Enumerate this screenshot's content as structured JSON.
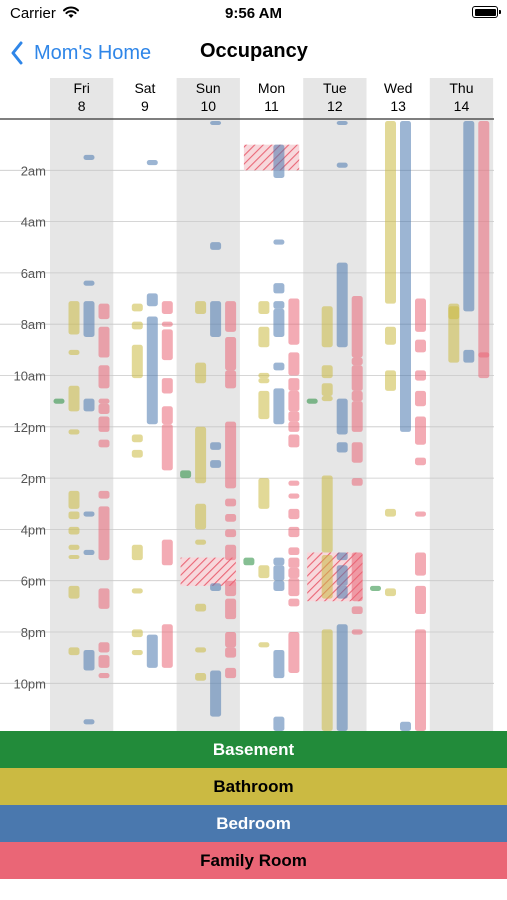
{
  "status_bar": {
    "carrier": "Carrier",
    "time": "9:56 AM"
  },
  "nav": {
    "back_label": "Mom's Home",
    "title": "Occupancy"
  },
  "days": [
    {
      "day": "Fri",
      "date": "8"
    },
    {
      "day": "Sat",
      "date": "9"
    },
    {
      "day": "Sun",
      "date": "10"
    },
    {
      "day": "Mon",
      "date": "11"
    },
    {
      "day": "Tue",
      "date": "12"
    },
    {
      "day": "Wed",
      "date": "13"
    },
    {
      "day": "Thu",
      "date": "14"
    }
  ],
  "hour_labels": [
    {
      "hour": 2,
      "label": "2am"
    },
    {
      "hour": 4,
      "label": "4am"
    },
    {
      "hour": 6,
      "label": "6am"
    },
    {
      "hour": 8,
      "label": "8am"
    },
    {
      "hour": 10,
      "label": "10am"
    },
    {
      "hour": 12,
      "label": "12pm"
    },
    {
      "hour": 14,
      "label": "2pm"
    },
    {
      "hour": 16,
      "label": "4pm"
    },
    {
      "hour": 18,
      "label": "6pm"
    },
    {
      "hour": 20,
      "label": "8pm"
    },
    {
      "hour": 22,
      "label": "10pm"
    }
  ],
  "rooms": [
    {
      "name": "Basement",
      "color": "#228b3a",
      "text_color": "#ffffff"
    },
    {
      "name": "Bathroom",
      "color": "#cbba42",
      "text_color": "#000000"
    },
    {
      "name": "Bedroom",
      "color": "#4a78ae",
      "text_color": "#ffffff"
    },
    {
      "name": "Family Room",
      "color": "#ea6676",
      "text_color": "#000000"
    }
  ],
  "colors": {
    "shaded_column": "#e6e6e6",
    "grid_line": "#c8c8c8",
    "header_line": "#333333"
  },
  "occupancy": [
    {
      "day": 0,
      "room": "Basement",
      "blocks": [
        [
          10.9,
          11.1
        ]
      ]
    },
    {
      "day": 0,
      "room": "Bathroom",
      "blocks": [
        [
          7.1,
          8.4
        ],
        [
          9.0,
          9.2
        ],
        [
          10.4,
          11.4
        ],
        [
          12.1,
          12.3
        ],
        [
          14.5,
          15.2
        ],
        [
          15.3,
          15.6
        ],
        [
          15.9,
          16.2
        ],
        [
          16.6,
          16.8
        ],
        [
          17.0,
          17.1
        ],
        [
          18.2,
          18.7
        ],
        [
          20.6,
          20.9
        ]
      ]
    },
    {
      "day": 0,
      "room": "Bedroom",
      "blocks": [
        [
          1.4,
          1.6
        ],
        [
          6.3,
          6.5
        ],
        [
          7.1,
          8.5
        ],
        [
          10.9,
          11.4
        ],
        [
          15.3,
          15.5
        ],
        [
          16.8,
          17.0
        ],
        [
          20.7,
          21.5
        ],
        [
          23.4,
          23.6
        ]
      ]
    },
    {
      "day": 0,
      "room": "Family Room",
      "blocks": [
        [
          7.2,
          7.8
        ],
        [
          8.1,
          9.3
        ],
        [
          9.6,
          10.5
        ],
        [
          10.9,
          11.1
        ],
        [
          11.1,
          11.5
        ],
        [
          11.6,
          12.2
        ],
        [
          12.5,
          12.8
        ],
        [
          14.5,
          14.8
        ],
        [
          15.1,
          17.2
        ],
        [
          18.3,
          19.1
        ],
        [
          20.4,
          20.8
        ],
        [
          20.9,
          21.4
        ],
        [
          21.6,
          21.8
        ]
      ]
    },
    {
      "day": 1,
      "room": "Bathroom",
      "blocks": [
        [
          7.2,
          7.5
        ],
        [
          7.9,
          8.2
        ],
        [
          8.8,
          10.1
        ],
        [
          12.3,
          12.6
        ],
        [
          12.9,
          13.2
        ],
        [
          16.6,
          17.2
        ],
        [
          18.3,
          18.5
        ],
        [
          19.9,
          20.2
        ],
        [
          20.7,
          20.9
        ]
      ]
    },
    {
      "day": 1,
      "room": "Bedroom",
      "blocks": [
        [
          1.6,
          1.8
        ],
        [
          6.8,
          7.3
        ],
        [
          7.7,
          11.9
        ],
        [
          20.1,
          21.4
        ]
      ]
    },
    {
      "day": 1,
      "room": "Family Room",
      "blocks": [
        [
          7.1,
          7.6
        ],
        [
          7.9,
          8.1
        ],
        [
          8.2,
          9.4
        ],
        [
          10.1,
          10.7
        ],
        [
          11.2,
          11.9
        ],
        [
          11.9,
          13.7
        ],
        [
          16.4,
          17.4
        ],
        [
          19.7,
          21.4
        ]
      ]
    },
    {
      "day": 2,
      "room": "Basement",
      "blocks": [
        [
          13.7,
          14.0
        ]
      ]
    },
    {
      "day": 2,
      "room": "Bathroom",
      "blocks": [
        [
          7.1,
          7.6
        ],
        [
          9.5,
          10.3
        ],
        [
          12.0,
          14.2
        ],
        [
          15.0,
          16.0
        ],
        [
          16.4,
          16.6
        ],
        [
          18.9,
          19.2
        ],
        [
          20.6,
          20.8
        ],
        [
          21.6,
          21.9
        ]
      ]
    },
    {
      "day": 2,
      "room": "Bedroom",
      "blocks": [
        [
          -0.2,
          0.2
        ],
        [
          4.8,
          5.1
        ],
        [
          7.1,
          8.5
        ],
        [
          12.6,
          12.9
        ],
        [
          13.3,
          13.6
        ],
        [
          18.1,
          18.4
        ],
        [
          21.5,
          23.3
        ]
      ]
    },
    {
      "day": 2,
      "room": "Family Room",
      "blocks": [
        [
          7.1,
          8.3
        ],
        [
          8.5,
          9.8
        ],
        [
          9.8,
          10.5
        ],
        [
          11.8,
          14.4
        ],
        [
          14.8,
          15.1
        ],
        [
          15.4,
          15.7
        ],
        [
          16.0,
          16.3
        ],
        [
          16.6,
          17.2
        ],
        [
          18.0,
          18.6
        ],
        [
          18.7,
          19.5
        ],
        [
          20.0,
          20.6
        ],
        [
          20.6,
          21.0
        ],
        [
          21.4,
          21.8
        ]
      ]
    },
    {
      "day": 3,
      "room": "Basement",
      "blocks": [
        [
          17.1,
          17.4
        ]
      ]
    },
    {
      "day": 3,
      "room": "Bathroom",
      "blocks": [
        [
          7.1,
          7.6
        ],
        [
          8.1,
          8.9
        ],
        [
          9.9,
          10.1
        ],
        [
          10.1,
          10.3
        ],
        [
          10.6,
          11.7
        ],
        [
          14.0,
          15.2
        ],
        [
          17.4,
          17.9
        ],
        [
          20.4,
          20.6
        ]
      ]
    },
    {
      "day": 3,
      "room": "Bedroom",
      "blocks": [
        [
          1.0,
          2.3
        ],
        [
          4.7,
          4.9
        ],
        [
          6.4,
          6.8
        ],
        [
          7.1,
          7.4
        ],
        [
          7.4,
          8.5
        ],
        [
          9.5,
          9.8
        ],
        [
          10.5,
          11.9
        ],
        [
          17.1,
          17.4
        ],
        [
          17.4,
          18.0
        ],
        [
          18.0,
          18.4
        ],
        [
          20.7,
          21.8
        ],
        [
          23.3,
          24.0
        ]
      ]
    },
    {
      "day": 3,
      "room": "Family Room",
      "blocks": [
        [
          7.0,
          8.8
        ],
        [
          9.1,
          10.0
        ],
        [
          10.1,
          10.6
        ],
        [
          10.6,
          11.4
        ],
        [
          11.4,
          11.8
        ],
        [
          11.8,
          12.2
        ],
        [
          12.3,
          12.8
        ],
        [
          14.1,
          14.3
        ],
        [
          14.6,
          14.8
        ],
        [
          15.2,
          15.6
        ],
        [
          15.9,
          16.3
        ],
        [
          16.7,
          17.0
        ],
        [
          17.1,
          17.5
        ],
        [
          17.5,
          17.9
        ],
        [
          17.9,
          18.6
        ],
        [
          18.7,
          19.0
        ],
        [
          20.0,
          21.6
        ]
      ]
    },
    {
      "day": 4,
      "room": "Basement",
      "blocks": [
        [
          10.9,
          11.1
        ]
      ]
    },
    {
      "day": 4,
      "room": "Bathroom",
      "blocks": [
        [
          7.3,
          8.9
        ],
        [
          9.6,
          10.1
        ],
        [
          10.3,
          10.8
        ],
        [
          10.8,
          11.0
        ],
        [
          13.9,
          16.9
        ],
        [
          17.0,
          18.7
        ],
        [
          19.9,
          24.0
        ]
      ]
    },
    {
      "day": 4,
      "room": "Bedroom",
      "blocks": [
        [
          -0.2,
          0.2
        ],
        [
          1.7,
          1.9
        ],
        [
          5.6,
          8.9
        ],
        [
          10.9,
          12.3
        ],
        [
          12.6,
          13.0
        ],
        [
          16.9,
          17.2
        ],
        [
          17.4,
          18.2
        ],
        [
          18.2,
          18.7
        ],
        [
          19.7,
          24.0
        ]
      ]
    },
    {
      "day": 4,
      "room": "Family Room",
      "blocks": [
        [
          6.9,
          9.3
        ],
        [
          9.3,
          9.6
        ],
        [
          9.6,
          10.6
        ],
        [
          10.6,
          11.0
        ],
        [
          11.0,
          12.2
        ],
        [
          12.6,
          13.4
        ],
        [
          14.0,
          14.3
        ],
        [
          16.9,
          18.8
        ],
        [
          19.0,
          19.3
        ],
        [
          19.9,
          20.1
        ]
      ]
    },
    {
      "day": 5,
      "room": "Basement",
      "blocks": [
        [
          18.2,
          18.4
        ]
      ]
    },
    {
      "day": 5,
      "room": "Bathroom",
      "blocks": [
        [
          -0.2,
          7.2
        ],
        [
          8.1,
          8.8
        ],
        [
          9.8,
          10.6
        ],
        [
          15.2,
          15.5
        ],
        [
          18.3,
          18.6
        ]
      ]
    },
    {
      "day": 5,
      "room": "Bedroom",
      "blocks": [
        [
          -0.2,
          12.2
        ],
        [
          23.5,
          24.0
        ]
      ]
    },
    {
      "day": 5,
      "room": "Family Room",
      "blocks": [
        [
          7.0,
          8.3
        ],
        [
          8.6,
          9.1
        ],
        [
          9.8,
          10.2
        ],
        [
          10.6,
          11.2
        ],
        [
          11.6,
          12.7
        ],
        [
          13.2,
          13.5
        ],
        [
          15.3,
          15.5
        ],
        [
          16.9,
          17.8
        ],
        [
          18.2,
          19.3
        ],
        [
          19.9,
          24.0
        ]
      ]
    },
    {
      "day": 6,
      "room": "Bathroom",
      "blocks": [
        [
          7.2,
          9.5
        ],
        [
          7.3,
          7.8
        ]
      ]
    },
    {
      "day": 6,
      "room": "Bedroom",
      "blocks": [
        [
          -0.2,
          7.5
        ],
        [
          9.0,
          9.5
        ]
      ]
    },
    {
      "day": 6,
      "room": "Family Room",
      "blocks": [
        [
          -0.2,
          10.1
        ],
        [
          9.1,
          9.3
        ]
      ]
    }
  ],
  "shared_use": [
    {
      "day": 3,
      "start": 1.0,
      "end": 2.0
    },
    {
      "day": 2,
      "start": 17.1,
      "end": 18.2
    },
    {
      "day": 4,
      "start": 16.9,
      "end": 18.8
    }
  ]
}
